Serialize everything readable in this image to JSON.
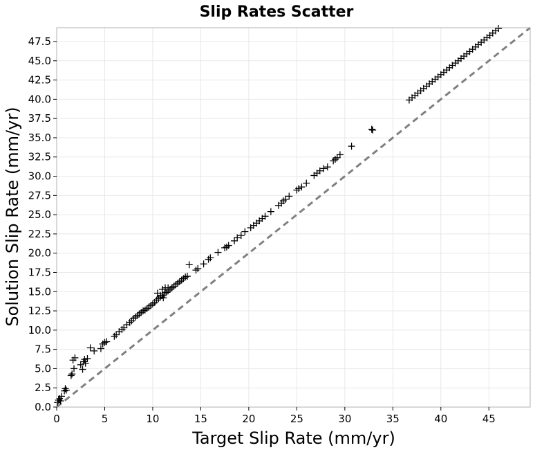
{
  "chart_data": {
    "type": "scatter",
    "title": "Slip Rates Scatter",
    "xlabel": "Target Slip Rate (mm/yr)",
    "ylabel": "Solution Slip Rate (mm/yr)",
    "xlim": [
      0,
      49.3
    ],
    "ylim": [
      0,
      49.3
    ],
    "xticks": [
      0,
      5,
      10,
      15,
      20,
      25,
      30,
      35,
      40,
      45
    ],
    "yticks": [
      0.0,
      2.5,
      5.0,
      7.5,
      10.0,
      12.5,
      15.0,
      17.5,
      20.0,
      22.5,
      25.0,
      27.5,
      30.0,
      32.5,
      35.0,
      37.5,
      40.0,
      42.5,
      45.0,
      47.5
    ],
    "xtick_labels": [
      "0",
      "5",
      "10",
      "15",
      "20",
      "25",
      "30",
      "35",
      "40",
      "45"
    ],
    "ytick_labels": [
      "0.0",
      "2.5",
      "5.0",
      "7.5",
      "10.0",
      "12.5",
      "15.0",
      "17.5",
      "20.0",
      "22.5",
      "25.0",
      "27.5",
      "30.0",
      "32.5",
      "35.0",
      "37.5",
      "40.0",
      "42.5",
      "45.0",
      "47.5"
    ],
    "grid": true,
    "marker": "plus",
    "marker_color": "#000000",
    "reference_line": {
      "style": "dashed",
      "color": "#808080",
      "from": [
        0,
        0
      ],
      "to": [
        49.3,
        49.3
      ]
    },
    "series": [
      {
        "points": [
          [
            0.1,
            0.6
          ],
          [
            0.2,
            0.9
          ],
          [
            0.3,
            1.1
          ],
          [
            0.4,
            0.8
          ],
          [
            0.5,
            1.4
          ],
          [
            0.8,
            2.1
          ],
          [
            0.9,
            2.4
          ],
          [
            1.0,
            2.2
          ],
          [
            1.5,
            4.1
          ],
          [
            1.6,
            4.3
          ],
          [
            1.7,
            6.1
          ],
          [
            1.8,
            5.0
          ],
          [
            1.9,
            6.4
          ],
          [
            2.5,
            5.5
          ],
          [
            2.7,
            4.9
          ],
          [
            2.8,
            5.9
          ],
          [
            2.9,
            6.2
          ],
          [
            3.0,
            5.7
          ],
          [
            3.2,
            6.3
          ],
          [
            3.5,
            7.7
          ],
          [
            3.9,
            7.3
          ],
          [
            4.6,
            7.6
          ],
          [
            4.8,
            8.2
          ],
          [
            5.0,
            8.4
          ],
          [
            5.2,
            8.5
          ],
          [
            6.0,
            9.2
          ],
          [
            6.2,
            9.4
          ],
          [
            6.5,
            9.8
          ],
          [
            6.8,
            10.1
          ],
          [
            7.0,
            10.3
          ],
          [
            7.3,
            10.7
          ],
          [
            7.6,
            11.0
          ],
          [
            7.8,
            11.2
          ],
          [
            8.0,
            11.5
          ],
          [
            8.2,
            11.7
          ],
          [
            8.4,
            11.9
          ],
          [
            8.6,
            12.1
          ],
          [
            8.8,
            12.3
          ],
          [
            9.0,
            12.5
          ],
          [
            9.2,
            12.6
          ],
          [
            9.4,
            12.8
          ],
          [
            9.6,
            13.0
          ],
          [
            9.8,
            13.2
          ],
          [
            10.0,
            13.4
          ],
          [
            10.2,
            13.6
          ],
          [
            10.4,
            13.9
          ],
          [
            10.6,
            14.1
          ],
          [
            10.8,
            14.3
          ],
          [
            11.0,
            14.5
          ],
          [
            11.2,
            14.7
          ],
          [
            11.4,
            14.9
          ],
          [
            11.6,
            15.1
          ],
          [
            11.8,
            15.3
          ],
          [
            12.0,
            15.5
          ],
          [
            12.2,
            15.7
          ],
          [
            12.4,
            15.9
          ],
          [
            12.6,
            16.1
          ],
          [
            12.8,
            16.3
          ],
          [
            13.0,
            16.5
          ],
          [
            13.2,
            16.7
          ],
          [
            13.4,
            16.9
          ],
          [
            13.6,
            17.0
          ],
          [
            11.0,
            15.3
          ],
          [
            11.3,
            15.5
          ],
          [
            11.6,
            15.5
          ],
          [
            12.0,
            15.5
          ],
          [
            10.5,
            14.8
          ],
          [
            10.8,
            14.5
          ],
          [
            11.1,
            14.2
          ],
          [
            13.8,
            18.5
          ],
          [
            14.5,
            17.8
          ],
          [
            14.7,
            18.0
          ],
          [
            15.3,
            18.6
          ],
          [
            15.8,
            19.2
          ],
          [
            16.0,
            19.4
          ],
          [
            16.8,
            20.1
          ],
          [
            17.5,
            20.7
          ],
          [
            17.7,
            20.8
          ],
          [
            17.9,
            21.0
          ],
          [
            18.5,
            21.6
          ],
          [
            18.8,
            22.0
          ],
          [
            19.2,
            22.3
          ],
          [
            19.6,
            22.8
          ],
          [
            20.2,
            23.3
          ],
          [
            20.5,
            23.6
          ],
          [
            20.8,
            23.9
          ],
          [
            21.1,
            24.2
          ],
          [
            21.4,
            24.5
          ],
          [
            21.7,
            24.8
          ],
          [
            22.3,
            25.4
          ],
          [
            23.1,
            26.2
          ],
          [
            23.4,
            26.5
          ],
          [
            23.6,
            26.8
          ],
          [
            23.8,
            27.0
          ],
          [
            24.2,
            27.4
          ],
          [
            25.0,
            28.2
          ],
          [
            25.2,
            28.4
          ],
          [
            25.5,
            28.6
          ],
          [
            26.0,
            29.1
          ],
          [
            26.8,
            30.1
          ],
          [
            27.1,
            30.4
          ],
          [
            27.4,
            30.7
          ],
          [
            27.8,
            31.0
          ],
          [
            28.2,
            31.2
          ],
          [
            28.8,
            32.0
          ],
          [
            29.0,
            32.2
          ],
          [
            29.2,
            32.4
          ],
          [
            29.5,
            32.8
          ],
          [
            30.7,
            33.9
          ],
          [
            32.8,
            36.1
          ],
          [
            32.9,
            36.0
          ],
          [
            36.7,
            39.9
          ],
          [
            37.0,
            40.2
          ],
          [
            37.3,
            40.5
          ],
          [
            37.6,
            40.8
          ],
          [
            37.9,
            41.1
          ],
          [
            38.2,
            41.4
          ],
          [
            38.5,
            41.7
          ],
          [
            38.8,
            42.0
          ],
          [
            39.1,
            42.3
          ],
          [
            39.4,
            42.6
          ],
          [
            39.7,
            42.9
          ],
          [
            40.0,
            43.2
          ],
          [
            40.3,
            43.5
          ],
          [
            40.6,
            43.8
          ],
          [
            40.9,
            44.1
          ],
          [
            41.2,
            44.4
          ],
          [
            41.5,
            44.7
          ],
          [
            41.8,
            45.0
          ],
          [
            42.1,
            45.3
          ],
          [
            42.4,
            45.6
          ],
          [
            42.7,
            45.9
          ],
          [
            43.0,
            46.2
          ],
          [
            43.3,
            46.5
          ],
          [
            43.6,
            46.8
          ],
          [
            43.9,
            47.1
          ],
          [
            44.2,
            47.4
          ],
          [
            44.5,
            47.7
          ],
          [
            44.8,
            48.0
          ],
          [
            45.1,
            48.3
          ],
          [
            45.4,
            48.6
          ],
          [
            45.7,
            48.9
          ],
          [
            46.0,
            49.2
          ]
        ]
      }
    ]
  }
}
